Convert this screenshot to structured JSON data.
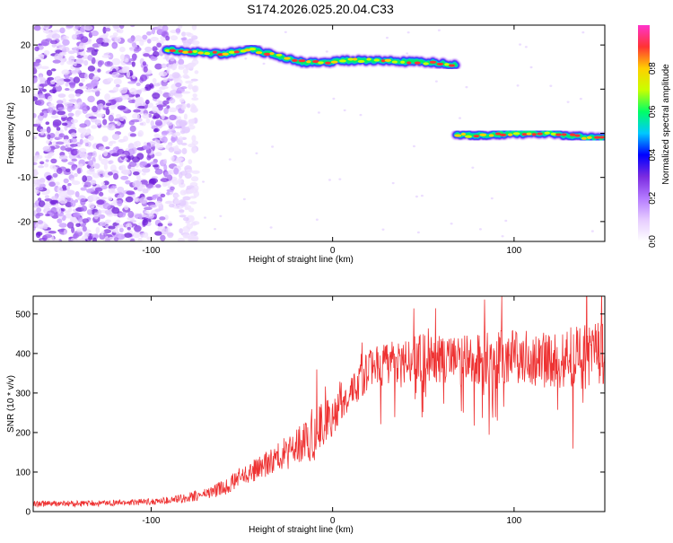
{
  "title": "S174.2026.025.20.04.C33",
  "chart_data": [
    {
      "type": "heatmap",
      "xlabel": "Height of straight line (km)",
      "ylabel": "Frequency (Hz)",
      "xlim": [
        -165,
        150
      ],
      "ylim": [
        -24.5,
        24.5
      ],
      "xticks": [
        -100,
        0,
        100
      ],
      "yticks": [
        -20,
        -10,
        0,
        10,
        20
      ],
      "grid": false,
      "ridges": [
        {
          "x": [
            -92,
            -80,
            -60,
            -45,
            -35,
            -25,
            -15,
            -5,
            5,
            20,
            40,
            55,
            68
          ],
          "freq": [
            19,
            18.5,
            18,
            19,
            18,
            17,
            16,
            16,
            16.5,
            16.5,
            16.2,
            16,
            15.5
          ]
        },
        {
          "x": [
            68,
            80,
            100,
            120,
            140,
            150
          ],
          "freq": [
            -0.5,
            -0.5,
            0,
            0,
            -1,
            -1
          ]
        }
      ],
      "noise_region": {
        "x_range": [
          -165,
          -75
        ],
        "freq_range": [
          -24.5,
          24.5
        ]
      },
      "colorbar": {
        "label": "Normalized spectral amplitude",
        "range": [
          0,
          1
        ],
        "ticks": [
          "0.0",
          "0.2",
          "0.4",
          "0.6",
          "0.8"
        ],
        "colors": [
          "#ffffff",
          "#e6ccff",
          "#b47aff",
          "#7a2be0",
          "#0000ff",
          "#00c8ff",
          "#00ff66",
          "#c8ff00",
          "#ffd000",
          "#ff3333",
          "#ff33cc"
        ]
      }
    },
    {
      "type": "line",
      "xlabel": "Height of straight line (km)",
      "ylabel": "SNR (10 * v/v)",
      "xlim": [
        -165,
        150
      ],
      "ylim": [
        0,
        545
      ],
      "xticks": [
        -100,
        0,
        100
      ],
      "yticks": [
        0,
        100,
        200,
        300,
        400,
        500
      ],
      "grid": false,
      "color": "#ee3333",
      "x": [
        -165,
        -140,
        -120,
        -100,
        -90,
        -80,
        -70,
        -60,
        -50,
        -40,
        -30,
        -20,
        -15,
        -10,
        -5,
        0,
        5,
        10,
        15,
        20,
        25,
        30,
        40,
        50,
        60,
        70,
        80,
        90,
        100,
        110,
        120,
        130,
        140,
        150
      ],
      "y": [
        20,
        20,
        22,
        25,
        28,
        35,
        45,
        60,
        90,
        110,
        140,
        160,
        180,
        200,
        220,
        240,
        265,
        300,
        330,
        360,
        370,
        375,
        385,
        390,
        385,
        380,
        385,
        390,
        395,
        390,
        385,
        390,
        395,
        395
      ],
      "noise_amplitude": [
        8,
        8,
        8,
        8,
        10,
        12,
        15,
        20,
        25,
        30,
        35,
        50,
        60,
        70,
        60,
        50,
        40,
        40,
        45,
        50,
        55,
        55,
        60,
        60,
        60,
        65,
        65,
        70,
        70,
        70,
        75,
        80,
        85,
        85
      ]
    }
  ]
}
